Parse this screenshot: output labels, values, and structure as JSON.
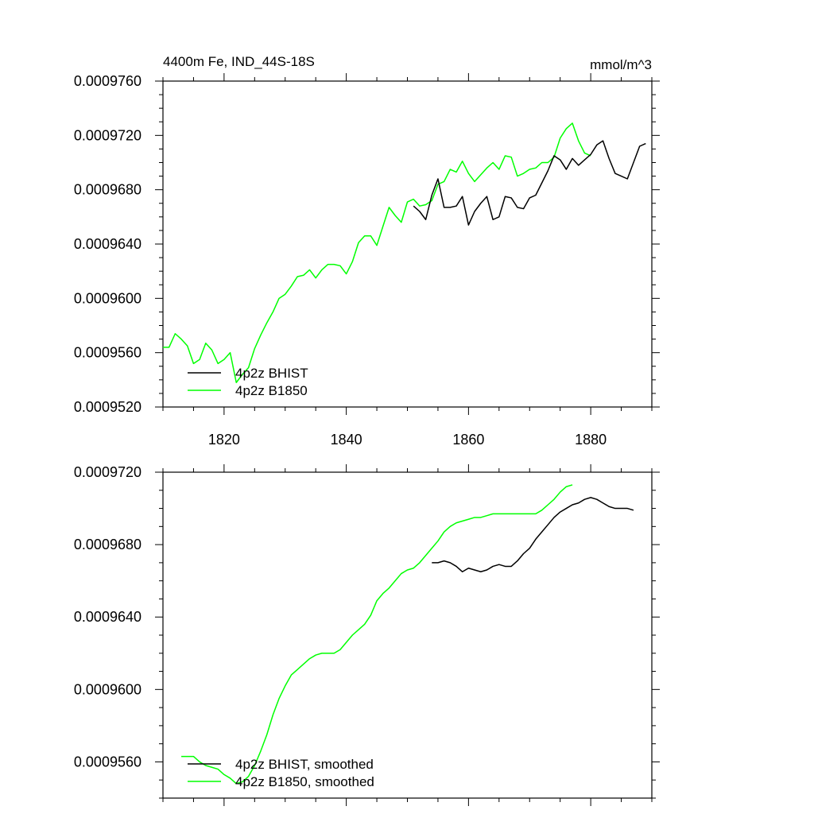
{
  "chart_data": [
    {
      "type": "line",
      "title": "4400m Fe, IND_44S-18S",
      "units_label": "mmol/m^3",
      "xlabel": "",
      "ylabel": "",
      "xlim": [
        1810,
        1890
      ],
      "ylim": [
        0.000952,
        0.000976
      ],
      "x_ticks": [
        1820,
        1840,
        1860,
        1880
      ],
      "x_tick_labels": [
        "1820",
        "1840",
        "1860",
        "1880"
      ],
      "y_ticks": [
        0.000952,
        0.000956,
        0.00096,
        0.000964,
        0.000968,
        0.000972,
        0.000976
      ],
      "y_tick_labels": [
        "0.0009520",
        "0.0009560",
        "0.0009600",
        "0.0009640",
        "0.0009680",
        "0.0009720",
        "0.0009760"
      ],
      "legend_position": "bottom-left",
      "series": [
        {
          "name": "4p2z BHIST",
          "color": "#000000",
          "x": [
            1851,
            1852,
            1853,
            1854,
            1855,
            1856,
            1857,
            1858,
            1859,
            1860,
            1861,
            1862,
            1863,
            1864,
            1865,
            1866,
            1867,
            1868,
            1869,
            1870,
            1871,
            1872,
            1873,
            1874,
            1875,
            1876,
            1877,
            1878,
            1879,
            1880,
            1881,
            1882,
            1883,
            1884,
            1885,
            1886,
            1887,
            1888,
            1889
          ],
          "values": [
            0.0009668,
            0.0009664,
            0.0009658,
            0.0009676,
            0.0009688,
            0.0009667,
            0.0009667,
            0.0009668,
            0.0009675,
            0.0009654,
            0.0009664,
            0.000967,
            0.0009675,
            0.0009658,
            0.000966,
            0.0009675,
            0.0009674,
            0.0009667,
            0.0009666,
            0.0009674,
            0.0009676,
            0.0009685,
            0.0009694,
            0.0009705,
            0.0009702,
            0.0009695,
            0.0009703,
            0.0009698,
            0.0009702,
            0.0009706,
            0.0009713,
            0.0009716,
            0.0009703,
            0.0009692,
            0.000969,
            0.0009688,
            0.00097,
            0.0009712,
            0.0009714
          ]
        },
        {
          "name": "4p2z B1850",
          "color": "#00ff00",
          "x": [
            1810,
            1811,
            1812,
            1813,
            1814,
            1815,
            1816,
            1817,
            1818,
            1819,
            1820,
            1821,
            1822,
            1823,
            1824,
            1825,
            1826,
            1827,
            1828,
            1829,
            1830,
            1831,
            1832,
            1833,
            1834,
            1835,
            1836,
            1837,
            1838,
            1839,
            1840,
            1841,
            1842,
            1843,
            1844,
            1845,
            1846,
            1847,
            1848,
            1849,
            1850,
            1851,
            1852,
            1853,
            1854,
            1855,
            1856,
            1857,
            1858,
            1859,
            1860,
            1861,
            1862,
            1863,
            1864,
            1865,
            1866,
            1867,
            1868,
            1869,
            1870,
            1871,
            1872,
            1873,
            1874,
            1875,
            1876,
            1877,
            1878,
            1879,
            1880
          ],
          "values": [
            0.0009564,
            0.0009564,
            0.0009574,
            0.000957,
            0.0009565,
            0.0009552,
            0.0009555,
            0.0009567,
            0.0009562,
            0.0009552,
            0.0009555,
            0.000956,
            0.0009538,
            0.0009544,
            0.0009549,
            0.0009563,
            0.0009573,
            0.0009582,
            0.000959,
            0.00096,
            0.0009603,
            0.0009609,
            0.0009616,
            0.0009617,
            0.0009621,
            0.0009615,
            0.0009621,
            0.0009625,
            0.0009625,
            0.0009624,
            0.0009618,
            0.0009627,
            0.0009641,
            0.0009646,
            0.0009646,
            0.0009639,
            0.0009653,
            0.0009667,
            0.0009661,
            0.0009656,
            0.0009671,
            0.0009673,
            0.0009668,
            0.0009669,
            0.0009672,
            0.0009684,
            0.0009686,
            0.0009695,
            0.0009693,
            0.0009701,
            0.0009692,
            0.0009686,
            0.0009691,
            0.0009696,
            0.00097,
            0.0009695,
            0.0009705,
            0.0009704,
            0.000969,
            0.0009692,
            0.0009695,
            0.0009696,
            0.00097,
            0.00097,
            0.0009704,
            0.0009718,
            0.0009725,
            0.0009729,
            0.0009716,
            0.0009707,
            0.0009705
          ]
        }
      ]
    },
    {
      "type": "line",
      "title": "",
      "xlabel": "",
      "ylabel": "",
      "xlim": [
        1810,
        1890
      ],
      "ylim": [
        0.000954,
        0.000972
      ],
      "x_ticks": [
        1820,
        1840,
        1860,
        1880
      ],
      "x_tick_labels": [],
      "y_ticks": [
        0.000956,
        0.00096,
        0.000964,
        0.000968,
        0.000972
      ],
      "y_tick_labels": [
        "0.0009560",
        "0.0009600",
        "0.0009640",
        "0.0009680",
        "0.0009720"
      ],
      "legend_position": "bottom-left",
      "series": [
        {
          "name": "4p2z BHIST, smoothed",
          "color": "#000000",
          "x": [
            1854,
            1855,
            1856,
            1857,
            1858,
            1859,
            1860,
            1861,
            1862,
            1863,
            1864,
            1865,
            1866,
            1867,
            1868,
            1869,
            1870,
            1871,
            1872,
            1873,
            1874,
            1875,
            1876,
            1877,
            1878,
            1879,
            1880,
            1881,
            1882,
            1883,
            1884,
            1885,
            1886,
            1887
          ],
          "values": [
            0.000967,
            0.000967,
            0.0009671,
            0.000967,
            0.0009668,
            0.0009665,
            0.0009667,
            0.0009666,
            0.0009665,
            0.0009666,
            0.0009668,
            0.0009669,
            0.0009668,
            0.0009668,
            0.0009671,
            0.0009675,
            0.0009678,
            0.0009683,
            0.0009687,
            0.0009691,
            0.0009695,
            0.0009698,
            0.00097,
            0.0009702,
            0.0009703,
            0.0009705,
            0.0009706,
            0.0009705,
            0.0009703,
            0.0009701,
            0.00097,
            0.00097,
            0.00097,
            0.0009699
          ]
        },
        {
          "name": "4p2z B1850, smoothed",
          "color": "#00ff00",
          "x": [
            1813,
            1814,
            1815,
            1816,
            1817,
            1818,
            1819,
            1820,
            1821,
            1822,
            1823,
            1824,
            1825,
            1826,
            1827,
            1828,
            1829,
            1830,
            1831,
            1832,
            1833,
            1834,
            1835,
            1836,
            1837,
            1838,
            1839,
            1840,
            1841,
            1842,
            1843,
            1844,
            1845,
            1846,
            1847,
            1848,
            1849,
            1850,
            1851,
            1852,
            1853,
            1854,
            1855,
            1856,
            1857,
            1858,
            1859,
            1860,
            1861,
            1862,
            1863,
            1864,
            1865,
            1866,
            1867,
            1868,
            1869,
            1870,
            1871,
            1872,
            1873,
            1874,
            1875,
            1876,
            1877
          ],
          "values": [
            0.0009563,
            0.0009563,
            0.0009563,
            0.000956,
            0.0009558,
            0.0009557,
            0.0009556,
            0.0009553,
            0.0009551,
            0.0009548,
            0.0009549,
            0.0009552,
            0.0009558,
            0.0009566,
            0.0009575,
            0.0009586,
            0.0009595,
            0.0009602,
            0.0009608,
            0.0009611,
            0.0009614,
            0.0009617,
            0.0009619,
            0.000962,
            0.000962,
            0.000962,
            0.0009622,
            0.0009626,
            0.000963,
            0.0009633,
            0.0009636,
            0.0009641,
            0.0009649,
            0.0009653,
            0.0009656,
            0.000966,
            0.0009664,
            0.0009666,
            0.0009667,
            0.000967,
            0.0009674,
            0.0009678,
            0.0009682,
            0.0009687,
            0.000969,
            0.0009692,
            0.0009693,
            0.0009694,
            0.0009695,
            0.0009695,
            0.0009696,
            0.0009697,
            0.0009697,
            0.0009697,
            0.0009697,
            0.0009697,
            0.0009697,
            0.0009697,
            0.0009697,
            0.0009699,
            0.0009702,
            0.0009705,
            0.0009709,
            0.0009712,
            0.0009713
          ]
        }
      ]
    }
  ]
}
